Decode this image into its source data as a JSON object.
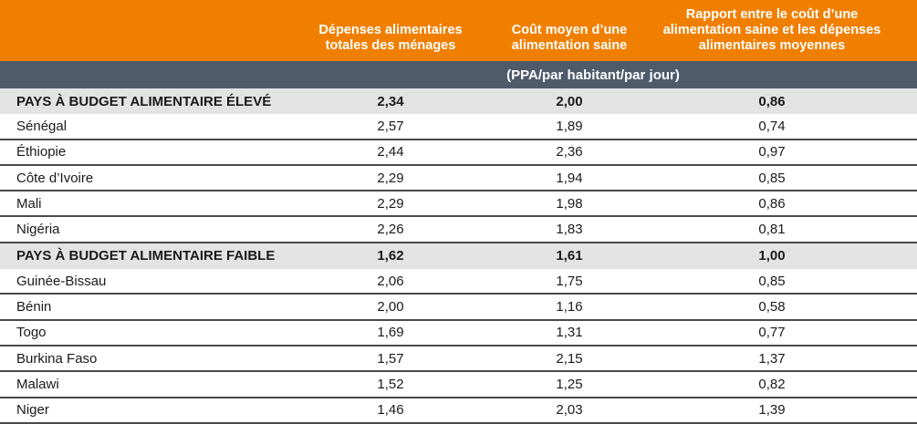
{
  "colors": {
    "header": "#F07F00",
    "units_bar": "#4F5B6B",
    "group_row": "#E3E3E3"
  },
  "headers": [
    "Dépenses alimentaires totales des ménages",
    "Coût moyen d’une alimentation saine",
    "Rapport entre le coût d’une alimentation saine et les dépenses alimentaires moyennes"
  ],
  "units": "(PPA/par habitant/par jour)",
  "rows": [
    {
      "type": "group",
      "label": "PAYS À BUDGET ALIMENTAIRE ÉLEVÉ",
      "v": [
        "2,34",
        "2,00",
        "0,86"
      ]
    },
    {
      "type": "country",
      "label": "Sénégal",
      "v": [
        "2,57",
        "1,89",
        "0,74"
      ]
    },
    {
      "type": "country",
      "label": "Éthiopie",
      "v": [
        "2,44",
        "2,36",
        "0,97"
      ]
    },
    {
      "type": "country",
      "label": "Côte d’Ivoire",
      "v": [
        "2,29",
        "1,94",
        "0,85"
      ]
    },
    {
      "type": "country",
      "label": "Mali",
      "v": [
        "2,29",
        "1,98",
        "0,86"
      ]
    },
    {
      "type": "country",
      "label": "Nigéria",
      "v": [
        "2,26",
        "1,83",
        "0,81"
      ]
    },
    {
      "type": "group",
      "label": "PAYS À BUDGET ALIMENTAIRE FAIBLE",
      "v": [
        "1,62",
        "1,61",
        "1,00"
      ]
    },
    {
      "type": "country",
      "label": "Guinée-Bissau",
      "v": [
        "2,06",
        "1,75",
        "0,85"
      ]
    },
    {
      "type": "country",
      "label": "Bénin",
      "v": [
        "2,00",
        "1,16",
        "0,58"
      ]
    },
    {
      "type": "country",
      "label": "Togo",
      "v": [
        "1,69",
        "1,31",
        "0,77"
      ]
    },
    {
      "type": "country",
      "label": "Burkina Faso",
      "v": [
        "1,57",
        "2,15",
        "1,37"
      ]
    },
    {
      "type": "country",
      "label": "Malawi",
      "v": [
        "1,52",
        "1,25",
        "0,82"
      ]
    },
    {
      "type": "country",
      "label": "Niger",
      "v": [
        "1,46",
        "2,03",
        "1,39"
      ]
    }
  ]
}
